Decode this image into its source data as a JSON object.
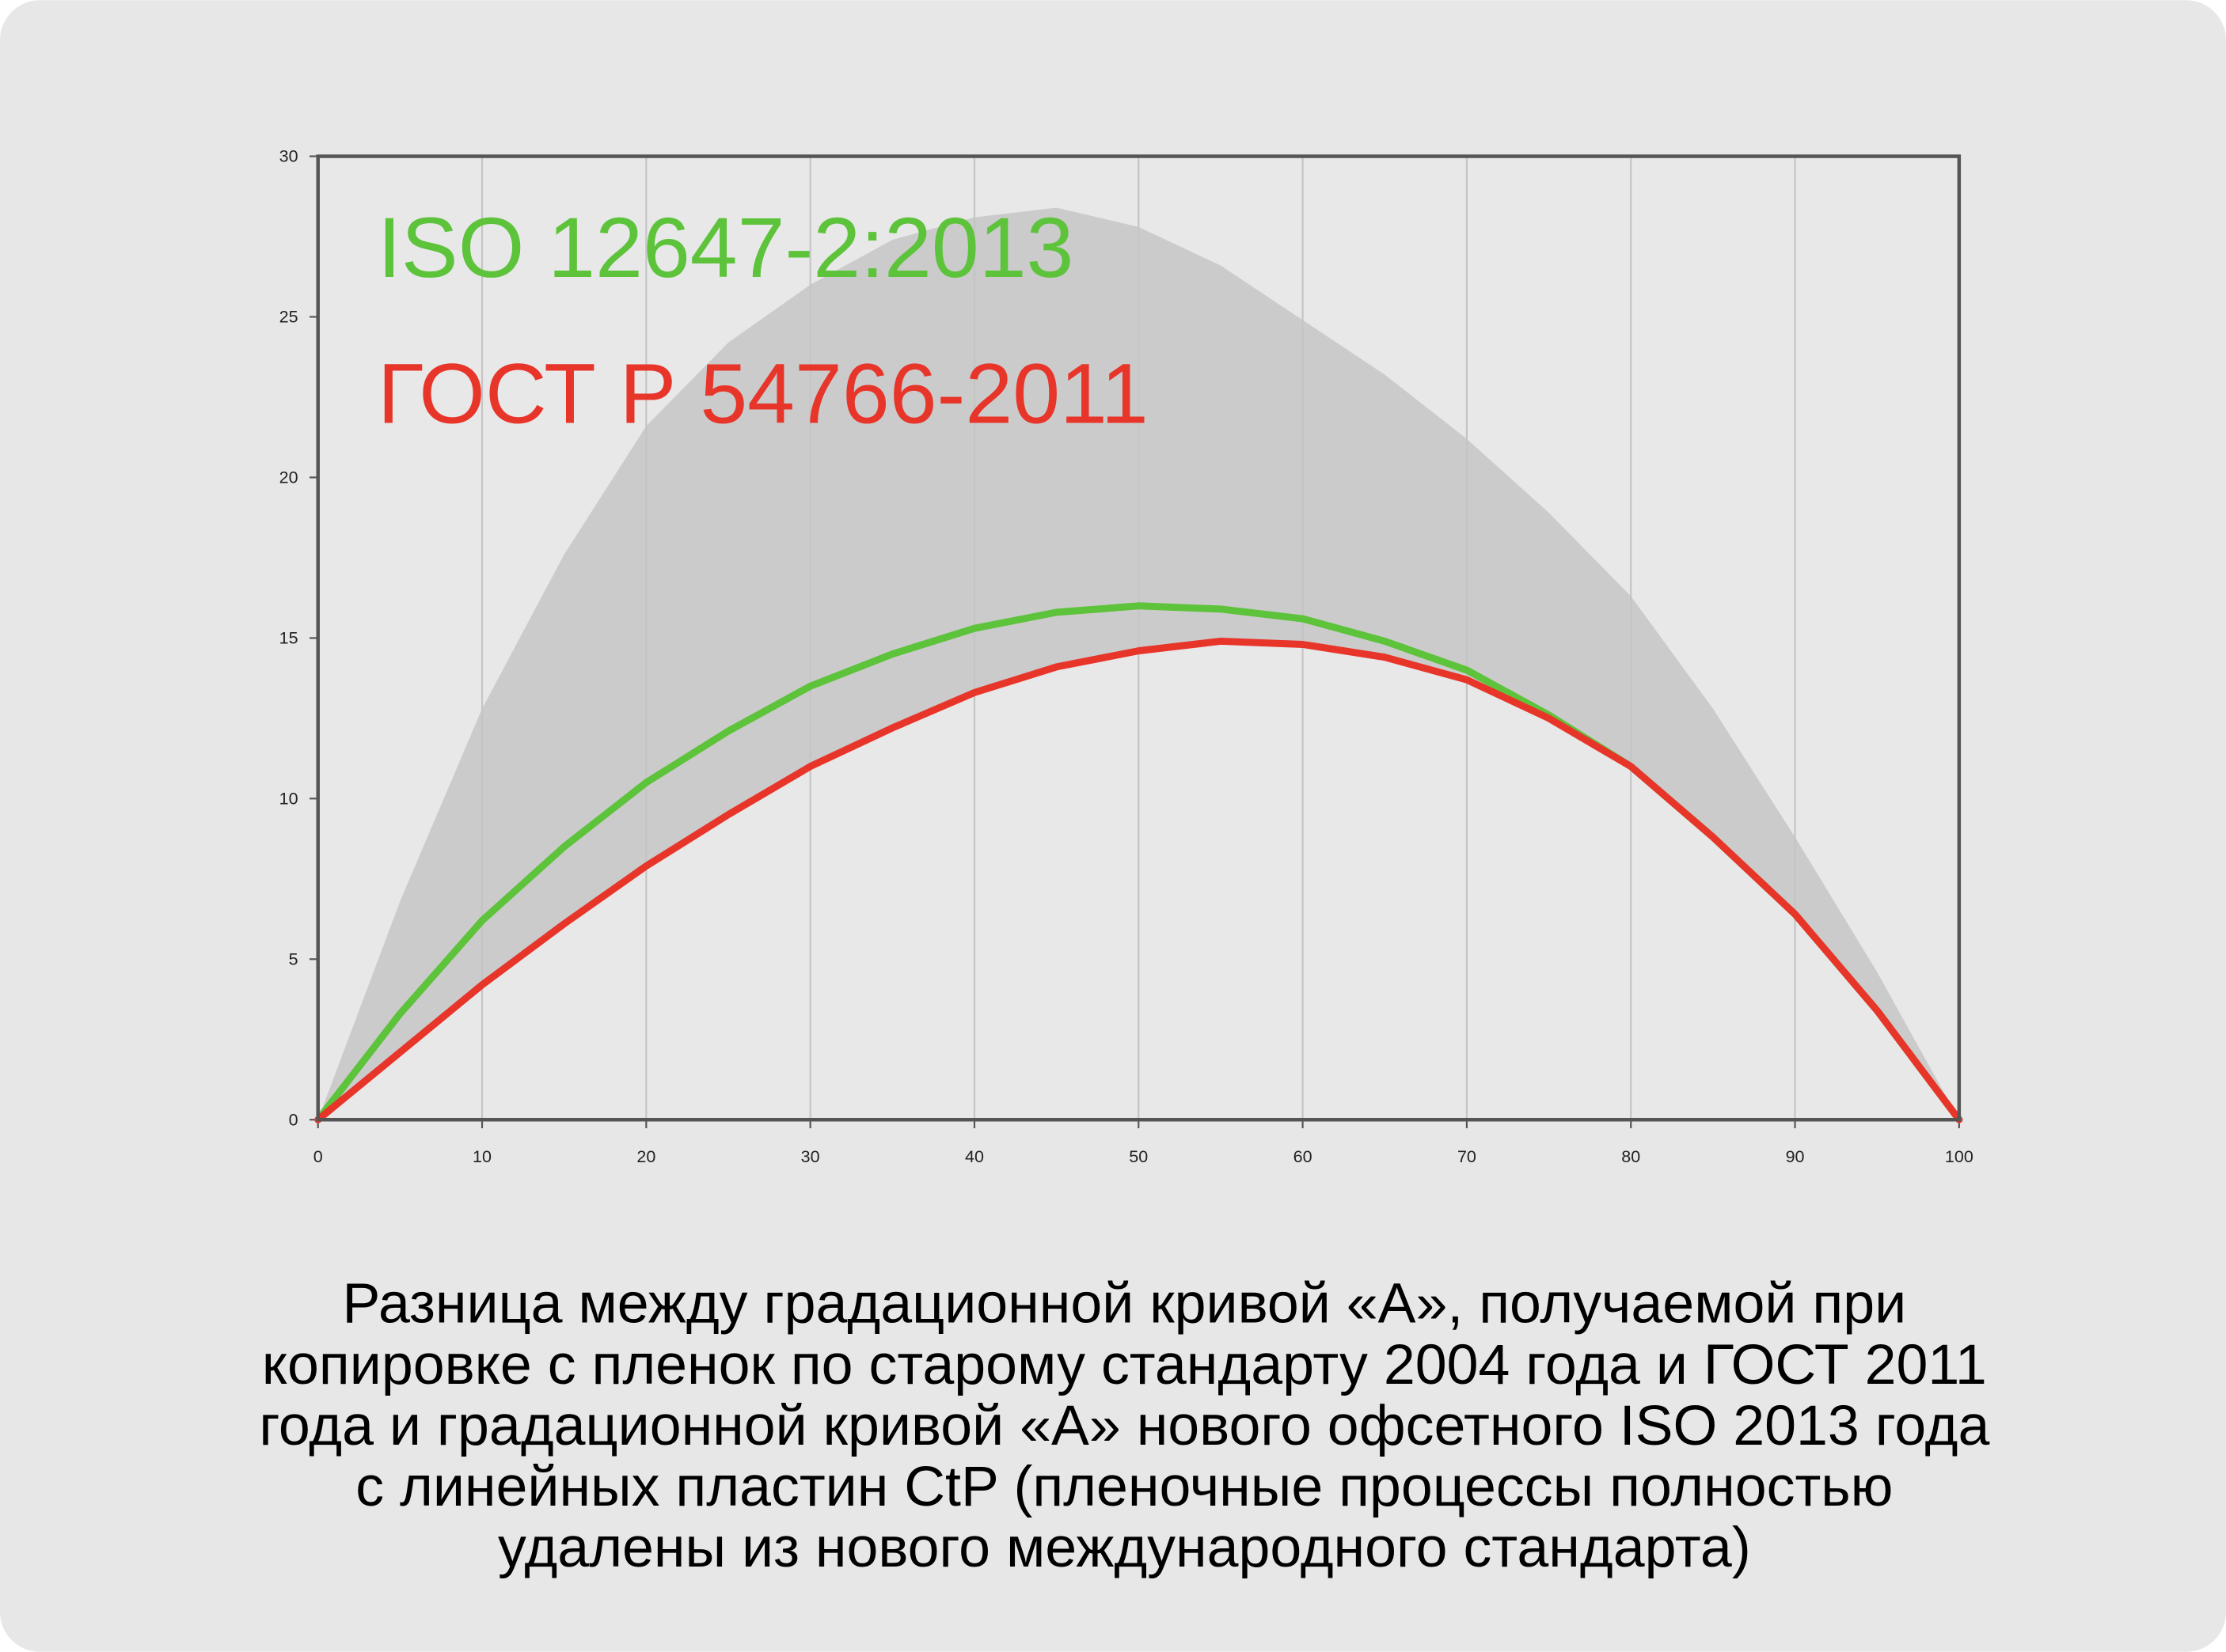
{
  "chart_data": {
    "type": "line",
    "x": [
      0,
      5,
      10,
      15,
      20,
      25,
      30,
      35,
      40,
      45,
      50,
      55,
      60,
      65,
      70,
      75,
      80,
      85,
      90,
      95,
      100
    ],
    "series": [
      {
        "name": "ISO 12647-2:2013",
        "color": "#5cc33a",
        "values": [
          0,
          3.3,
          6.2,
          8.5,
          10.5,
          12.1,
          13.5,
          14.5,
          15.3,
          15.8,
          16.0,
          15.9,
          15.6,
          14.9,
          14.0,
          12.6,
          11.0,
          8.8,
          6.4,
          3.4,
          0
        ]
      },
      {
        "name": "ГОСТ Р 54766-2011",
        "color": "#e8352a",
        "values": [
          0,
          2.1,
          4.2,
          6.1,
          7.9,
          9.5,
          11.0,
          12.2,
          13.3,
          14.1,
          14.6,
          14.9,
          14.8,
          14.4,
          13.7,
          12.5,
          11.0,
          8.8,
          6.4,
          3.4,
          0
        ]
      }
    ],
    "band": {
      "color": "#cbcbcb",
      "values": [
        0,
        6.8,
        12.8,
        17.6,
        21.6,
        24.2,
        26.0,
        27.4,
        28.1,
        28.4,
        27.8,
        26.6,
        24.9,
        23.2,
        21.2,
        18.9,
        16.3,
        12.8,
        8.8,
        4.6,
        0
      ]
    },
    "xlim": [
      0,
      100
    ],
    "ylim": [
      0,
      30
    ],
    "xticks": [
      0,
      10,
      20,
      30,
      40,
      50,
      60,
      70,
      80,
      90,
      100
    ],
    "yticks": [
      0,
      5,
      10,
      15,
      20,
      25,
      30
    ],
    "grid": "x",
    "caption": [
      "Разница между градационной кривой «А», получаемой при",
      "копировке с пленок по старому стандарту 2004 года и ГОСТ 2011",
      "года и градационной кривой «А» нового офсетного ISO 2013 года",
      "с линейных пластин CtP (пленочные процессы полностью",
      "удалены из нового международного стандарта)"
    ]
  }
}
